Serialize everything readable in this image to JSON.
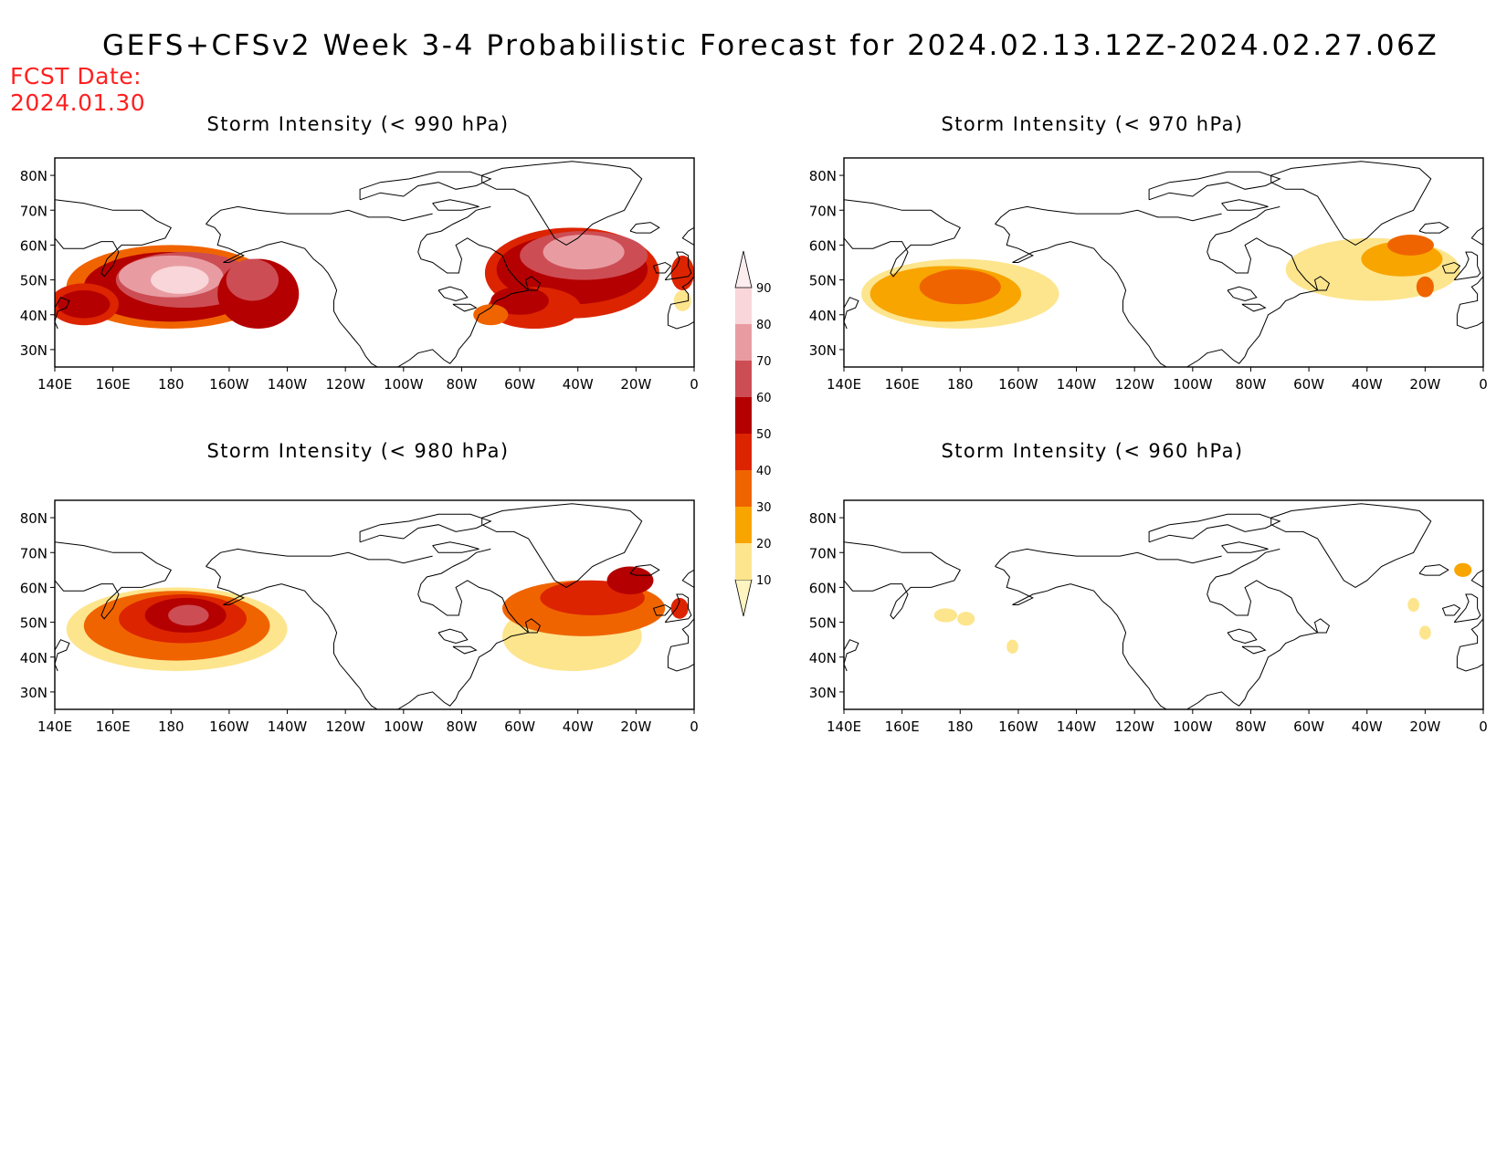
{
  "title": "GEFS+CFSv2 Week 3-4 Probabilistic Forecast for 2024.02.13.12Z-2024.02.27.06Z",
  "fcst_date": {
    "label": "FCST Date:",
    "value": "2024.01.30"
  },
  "lon_labels": [
    "140E",
    "160E",
    "180",
    "160W",
    "140W",
    "120W",
    "100W",
    "80W",
    "60W",
    "40W",
    "20W",
    "0"
  ],
  "lat_labels": [
    "80N",
    "70N",
    "60N",
    "50N",
    "40N",
    "30N"
  ],
  "panels": [
    {
      "id": "p990",
      "title": "Storm Intensity (< 990 hPa)"
    },
    {
      "id": "p970",
      "title": "Storm Intensity (< 970 hPa)"
    },
    {
      "id": "p980",
      "title": "Storm Intensity (< 980 hPa)"
    },
    {
      "id": "p960",
      "title": "Storm Intensity (< 960 hPa)"
    }
  ],
  "colorbar": {
    "levels": [
      "10",
      "20",
      "30",
      "40",
      "50",
      "60",
      "70",
      "80",
      "90"
    ],
    "colors": [
      "#fff5c0",
      "#fde58e",
      "#f8a500",
      "#f06400",
      "#dc2400",
      "#b40000",
      "#cd4d54",
      "#e89ca2",
      "#f8d6da",
      "#fcedef"
    ]
  },
  "colors": {
    "fcst_date": "#ff2020"
  }
}
